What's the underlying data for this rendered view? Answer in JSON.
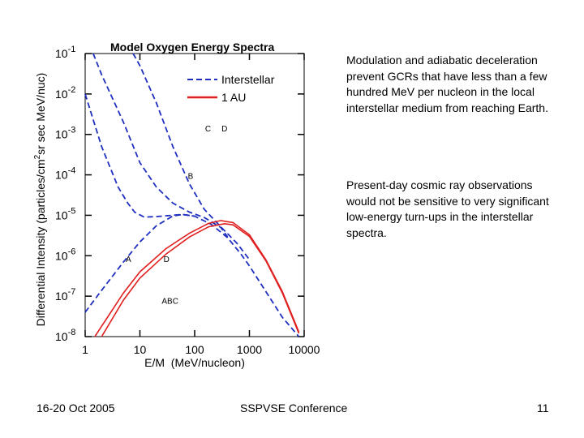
{
  "slide": {
    "paragraph1": "Modulation and adiabatic deceleration prevent GCRs that have less than a few hundred MeV per nucleon in the local interstellar medium from reaching Earth.",
    "paragraph2": "Present-day cosmic ray observations would not be sensitive to very significant low-energy turn-ups in the interstellar spectra.",
    "footer_date": "16-20 Oct 2005",
    "footer_conference": "SSPVSE Conference",
    "page_number": "11"
  },
  "chart_data": {
    "type": "line",
    "title": "Model Oxygen Energy Spectra",
    "xlabel": "E/M  (MeV/nucleon)",
    "ylabel": "Differential Intensity (particles/cm2sr sec MeV/nuc)",
    "ylabel_main": "Differential Intensity (particles/cm",
    "ylabel_sup": "2",
    "ylabel_tail": "sr sec MeV/nuc)",
    "x_scale": "log",
    "y_scale": "log",
    "xlim": [
      1,
      10000
    ],
    "ylim": [
      1e-08,
      0.1
    ],
    "x_tick_labels": [
      "1",
      "10",
      "100",
      "1000",
      "10000"
    ],
    "y_ticks": [
      {
        "base": "10",
        "exp": "-1"
      },
      {
        "base": "10",
        "exp": "-2"
      },
      {
        "base": "10",
        "exp": "-3"
      },
      {
        "base": "10",
        "exp": "-4"
      },
      {
        "base": "10",
        "exp": "-5"
      },
      {
        "base": "10",
        "exp": "-6"
      },
      {
        "base": "10",
        "exp": "-7"
      },
      {
        "base": "10",
        "exp": "-8"
      }
    ],
    "legend": {
      "placement": "top-right",
      "entries": [
        {
          "label": "Interstellar",
          "color": "#1f2fbf",
          "style": "dashed"
        },
        {
          "label": "1 AU",
          "color": "#e02020",
          "style": "solid"
        }
      ]
    },
    "series": [
      {
        "group": "interstellar",
        "label": "A",
        "color": "#1f2fbf",
        "dash": true,
        "points": [
          [
            1,
            4e-08
          ],
          [
            2,
            1.4e-07
          ],
          [
            5,
            7e-07
          ],
          [
            10,
            2.2e-06
          ],
          [
            20,
            5.5e-06
          ],
          [
            40,
            9.6e-06
          ],
          [
            60,
            1.05e-05
          ],
          [
            100,
            9.5e-06
          ],
          [
            200,
            6e-06
          ],
          [
            400,
            2.8e-06
          ],
          [
            700,
            1.1e-06
          ],
          [
            1000,
            5.6e-07
          ],
          [
            2000,
            1.3e-07
          ],
          [
            4000,
            3e-08
          ],
          [
            8000,
            1e-08
          ]
        ]
      },
      {
        "group": "interstellar",
        "label": "B",
        "color": "#1f2fbf",
        "dash": true,
        "points": [
          [
            1,
            0.01
          ],
          [
            2,
            0.0005
          ],
          [
            4,
            5e-05
          ],
          [
            6,
            2e-05
          ],
          [
            8,
            1.2e-05
          ],
          [
            12,
            9e-06
          ],
          [
            20,
            9.3e-06
          ],
          [
            40,
            1e-05
          ],
          [
            60,
            1.05e-05
          ],
          [
            100,
            9.5e-06
          ]
        ]
      },
      {
        "group": "interstellar",
        "label": "C",
        "color": "#1f2fbf",
        "dash": true,
        "points": [
          [
            1.4,
            0.1
          ],
          [
            2,
            0.03
          ],
          [
            5,
            0.002
          ],
          [
            10,
            0.0002
          ],
          [
            20,
            5e-05
          ],
          [
            40,
            2e-05
          ],
          [
            80,
            1.2e-05
          ],
          [
            150,
            8.8e-06
          ],
          [
            300,
            5e-06
          ],
          [
            400,
            2.9e-06
          ]
        ]
      },
      {
        "group": "interstellar",
        "label": "D",
        "color": "#1f2fbf",
        "dash": true,
        "points": [
          [
            7.5,
            0.1
          ],
          [
            10,
            0.05
          ],
          [
            20,
            0.006
          ],
          [
            40,
            0.0005
          ],
          [
            80,
            6e-05
          ],
          [
            150,
            1.4e-05
          ],
          [
            300,
            5.2e-06
          ],
          [
            600,
            2e-06
          ],
          [
            1000,
            8e-07
          ]
        ]
      },
      {
        "group": "1au",
        "label": "D",
        "color": "#e02020",
        "dash": false,
        "points": [
          [
            1.5,
            1e-08
          ],
          [
            5,
            1.2e-07
          ],
          [
            10,
            4e-07
          ],
          [
            30,
            1.5e-06
          ],
          [
            80,
            3.6e-06
          ],
          [
            180,
            6.3e-06
          ],
          [
            300,
            7.4e-06
          ],
          [
            500,
            6.6e-06
          ],
          [
            1000,
            3.3e-06
          ],
          [
            2000,
            8e-07
          ],
          [
            4000,
            1.3e-07
          ],
          [
            8000,
            1.3e-08
          ]
        ]
      },
      {
        "group": "1au",
        "label": "ABC",
        "color": "#e02020",
        "dash": false,
        "points": [
          [
            2,
            1e-08
          ],
          [
            5,
            8e-08
          ],
          [
            10,
            2.8e-07
          ],
          [
            30,
            1.1e-06
          ],
          [
            80,
            2.9e-06
          ],
          [
            180,
            5.2e-06
          ],
          [
            350,
            6.2e-06
          ],
          [
            500,
            5.8e-06
          ],
          [
            1000,
            3e-06
          ],
          [
            2000,
            7.5e-07
          ],
          [
            4000,
            1.2e-07
          ],
          [
            8000,
            1.2e-08
          ]
        ]
      }
    ],
    "curve_labels": [
      {
        "text": "D",
        "x": 310,
        "y": 0.0012
      },
      {
        "text": "C",
        "x": 155,
        "y": 0.0012
      },
      {
        "text": "B",
        "x": 75,
        "y": 8e-05
      },
      {
        "text": "A",
        "x": 5.5,
        "y": 7e-07
      },
      {
        "text": "D",
        "x": 27,
        "y": 7e-07
      },
      {
        "text": "ABC",
        "x": 25,
        "y": 6.5e-08
      }
    ]
  }
}
